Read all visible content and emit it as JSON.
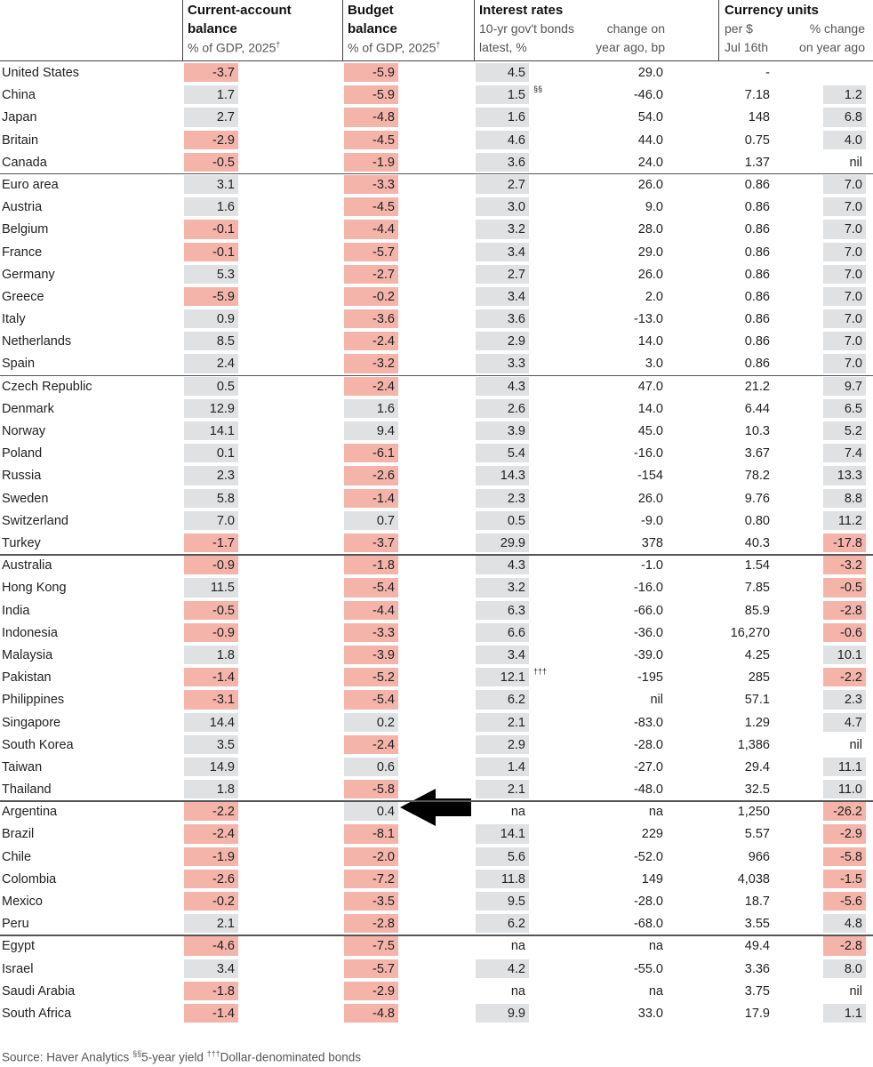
{
  "header": {
    "current_account": {
      "title": [
        "Current-account",
        "balance"
      ],
      "subtitle": "% of GDP, 2025",
      "footnote": "†"
    },
    "budget": {
      "title": [
        "Budget",
        "balance"
      ],
      "subtitle": "% of GDP, 2025",
      "footnote": "†"
    },
    "interest_rates": {
      "title": "Interest rates",
      "columns": [
        [
          "10-yr gov't bonds",
          "latest, %"
        ],
        [
          "change on",
          "year ago, bp"
        ]
      ]
    },
    "currency": {
      "title": "Currency units",
      "columns": [
        [
          "per $",
          "Jul 16th"
        ],
        [
          "% change",
          "on year ago"
        ]
      ]
    }
  },
  "table": {
    "groups": [
      {
        "rows": [
          {
            "country": "United States",
            "current_account": "-3.7",
            "budget": "-5.9",
            "bond_latest": "4.5",
            "bond_change": "29.0",
            "per_dollar": "-"
          },
          {
            "country": "China",
            "current_account": "1.7",
            "budget": "-5.9",
            "bond_latest": "1.5",
            "note": "§§",
            "bond_change": "-46.0",
            "per_dollar": "7.18",
            "currency_change": "1.2"
          },
          {
            "country": "Japan",
            "current_account": "2.7",
            "budget": "-4.8",
            "bond_latest": "1.6",
            "bond_change": "54.0",
            "per_dollar": "148",
            "currency_change": "6.8"
          },
          {
            "country": "Britain",
            "current_account": "-2.9",
            "budget": "-4.5",
            "bond_latest": "4.6",
            "bond_change": "44.0",
            "per_dollar": "0.75",
            "currency_change": "4.0"
          },
          {
            "country": "Canada",
            "current_account": "-0.5",
            "budget": "-1.9",
            "bond_latest": "3.6",
            "bond_change": "24.0",
            "per_dollar": "1.37",
            "currency_change": "nil"
          }
        ]
      },
      {
        "rows": [
          {
            "country": "Euro area",
            "current_account": "3.1",
            "budget": "-3.3",
            "bond_latest": "2.7",
            "bond_change": "26.0",
            "per_dollar": "0.86",
            "currency_change": "7.0"
          },
          {
            "country": "Austria",
            "current_account": "1.6",
            "budget": "-4.5",
            "bond_latest": "3.0",
            "bond_change": "9.0",
            "per_dollar": "0.86",
            "currency_change": "7.0"
          },
          {
            "country": "Belgium",
            "current_account": "-0.1",
            "budget": "-4.4",
            "bond_latest": "3.2",
            "bond_change": "28.0",
            "per_dollar": "0.86",
            "currency_change": "7.0"
          },
          {
            "country": "France",
            "current_account": "-0.1",
            "budget": "-5.7",
            "bond_latest": "3.4",
            "bond_change": "29.0",
            "per_dollar": "0.86",
            "currency_change": "7.0"
          },
          {
            "country": "Germany",
            "current_account": "5.3",
            "budget": "-2.7",
            "bond_latest": "2.7",
            "bond_change": "26.0",
            "per_dollar": "0.86",
            "currency_change": "7.0"
          },
          {
            "country": "Greece",
            "current_account": "-5.9",
            "budget": "-0.2",
            "bond_latest": "3.4",
            "bond_change": "2.0",
            "per_dollar": "0.86",
            "currency_change": "7.0"
          },
          {
            "country": "Italy",
            "current_account": "0.9",
            "budget": "-3.6",
            "bond_latest": "3.6",
            "bond_change": "-13.0",
            "per_dollar": "0.86",
            "currency_change": "7.0"
          },
          {
            "country": "Netherlands",
            "current_account": "8.5",
            "budget": "-2.4",
            "bond_latest": "2.9",
            "bond_change": "14.0",
            "per_dollar": "0.86",
            "currency_change": "7.0"
          },
          {
            "country": "Spain",
            "current_account": "2.4",
            "budget": "-3.2",
            "bond_latest": "3.3",
            "bond_change": "3.0",
            "per_dollar": "0.86",
            "currency_change": "7.0"
          }
        ]
      },
      {
        "rows": [
          {
            "country": "Czech Republic",
            "current_account": "0.5",
            "budget": "-2.4",
            "bond_latest": "4.3",
            "bond_change": "47.0",
            "per_dollar": "21.2",
            "currency_change": "9.7"
          },
          {
            "country": "Denmark",
            "current_account": "12.9",
            "budget": "1.6",
            "bond_latest": "2.6",
            "bond_change": "14.0",
            "per_dollar": "6.44",
            "currency_change": "6.5"
          },
          {
            "country": "Norway",
            "current_account": "14.1",
            "budget": "9.4",
            "bond_latest": "3.9",
            "bond_change": "45.0",
            "per_dollar": "10.3",
            "currency_change": "5.2"
          },
          {
            "country": "Poland",
            "current_account": "0.1",
            "budget": "-6.1",
            "bond_latest": "5.4",
            "bond_change": "-16.0",
            "per_dollar": "3.67",
            "currency_change": "7.4"
          },
          {
            "country": "Russia",
            "current_account": "2.3",
            "budget": "-2.6",
            "bond_latest": "14.3",
            "bond_change": "-154",
            "per_dollar": "78.2",
            "currency_change": "13.3"
          },
          {
            "country": "Sweden",
            "current_account": "5.8",
            "budget": "-1.4",
            "bond_latest": "2.3",
            "bond_change": "26.0",
            "per_dollar": "9.76",
            "currency_change": "8.8"
          },
          {
            "country": "Switzerland",
            "current_account": "7.0",
            "budget": "0.7",
            "bond_latest": "0.5",
            "bond_change": "-9.0",
            "per_dollar": "0.80",
            "currency_change": "11.2"
          },
          {
            "country": "Turkey",
            "current_account": "-1.7",
            "budget": "-3.7",
            "bond_latest": "29.9",
            "bond_change": "378",
            "per_dollar": "40.3",
            "currency_change": "-17.8"
          }
        ]
      },
      {
        "rows": [
          {
            "country": "Australia",
            "current_account": "-0.9",
            "budget": "-1.8",
            "bond_latest": "4.3",
            "bond_change": "-1.0",
            "per_dollar": "1.54",
            "currency_change": "-3.2"
          },
          {
            "country": "Hong Kong",
            "current_account": "11.5",
            "budget": "-5.4",
            "bond_latest": "3.2",
            "bond_change": "-16.0",
            "per_dollar": "7.85",
            "currency_change": "-0.5"
          },
          {
            "country": "India",
            "current_account": "-0.5",
            "budget": "-4.4",
            "bond_latest": "6.3",
            "bond_change": "-66.0",
            "per_dollar": "85.9",
            "currency_change": "-2.8"
          },
          {
            "country": "Indonesia",
            "current_account": "-0.9",
            "budget": "-3.3",
            "bond_latest": "6.6",
            "bond_change": "-36.0",
            "per_dollar": "16,270",
            "currency_change": "-0.6"
          },
          {
            "country": "Malaysia",
            "current_account": "1.8",
            "budget": "-3.9",
            "bond_latest": "3.4",
            "bond_change": "-39.0",
            "per_dollar": "4.25",
            "currency_change": "10.1"
          },
          {
            "country": "Pakistan",
            "current_account": "-1.4",
            "budget": "-5.2",
            "bond_latest": "12.1",
            "note": "†††",
            "bond_change": "-195",
            "per_dollar": "285",
            "currency_change": "-2.2"
          },
          {
            "country": "Philippines",
            "current_account": "-3.1",
            "budget": "-5.4",
            "bond_latest": "6.2",
            "bond_change": "nil",
            "per_dollar": "57.1",
            "currency_change": "2.3"
          },
          {
            "country": "Singapore",
            "current_account": "14.4",
            "budget": "0.2",
            "bond_latest": "2.1",
            "bond_change": "-83.0",
            "per_dollar": "1.29",
            "currency_change": "4.7"
          },
          {
            "country": "South Korea",
            "current_account": "3.5",
            "budget": "-2.4",
            "bond_latest": "2.9",
            "bond_change": "-28.0",
            "per_dollar": "1,386",
            "currency_change": "nil"
          },
          {
            "country": "Taiwan",
            "current_account": "14.9",
            "budget": "0.6",
            "bond_latest": "1.4",
            "bond_change": "-27.0",
            "per_dollar": "29.4",
            "currency_change": "11.1"
          },
          {
            "country": "Thailand",
            "current_account": "1.8",
            "budget": "-5.8",
            "bond_latest": "2.1",
            "bond_change": "-48.0",
            "per_dollar": "32.5",
            "currency_change": "11.0"
          }
        ]
      },
      {
        "rows": [
          {
            "country": "Argentina",
            "current_account": "-2.2",
            "budget": "0.4",
            "bond_latest": "na",
            "bond_change": "na",
            "per_dollar": "1,250",
            "currency_change": "-26.2"
          },
          {
            "country": "Brazil",
            "current_account": "-2.4",
            "budget": "-8.1",
            "bond_latest": "14.1",
            "bond_change": "229",
            "per_dollar": "5.57",
            "currency_change": "-2.9"
          },
          {
            "country": "Chile",
            "current_account": "-1.9",
            "budget": "-2.0",
            "bond_latest": "5.6",
            "bond_change": "-52.0",
            "per_dollar": "966",
            "currency_change": "-5.8"
          },
          {
            "country": "Colombia",
            "current_account": "-2.6",
            "budget": "-7.2",
            "bond_latest": "11.8",
            "bond_change": "149",
            "per_dollar": "4,038",
            "currency_change": "-1.5"
          },
          {
            "country": "Mexico",
            "current_account": "-0.2",
            "budget": "-3.5",
            "bond_latest": "9.5",
            "bond_change": "-28.0",
            "per_dollar": "18.7",
            "currency_change": "-5.6"
          },
          {
            "country": "Peru",
            "current_account": "2.1",
            "budget": "-2.8",
            "bond_latest": "6.2",
            "bond_change": "-68.0",
            "per_dollar": "3.55",
            "currency_change": "4.8"
          }
        ]
      },
      {
        "rows": [
          {
            "country": "Egypt",
            "current_account": "-4.6",
            "budget": "-7.5",
            "bond_latest": "na",
            "bond_change": "na",
            "per_dollar": "49.4",
            "currency_change": "-2.8"
          },
          {
            "country": "Israel",
            "current_account": "3.4",
            "budget": "-5.7",
            "bond_latest": "4.2",
            "bond_change": "-55.0",
            "per_dollar": "3.36",
            "currency_change": "8.0"
          },
          {
            "country": "Saudi Arabia",
            "current_account": "-1.8",
            "budget": "-2.9",
            "bond_latest": "na",
            "bond_change": "na",
            "per_dollar": "3.75",
            "currency_change": "nil"
          },
          {
            "country": "South Africa",
            "current_account": "-1.4",
            "budget": "-4.8",
            "bond_latest": "9.9",
            "bond_change": "33.0",
            "per_dollar": "17.9",
            "currency_change": "1.1"
          }
        ]
      }
    ]
  },
  "source": {
    "label": "Source: Haver Analytics",
    "notes": [
      {
        "mark": "§§",
        "text": "5-year yield"
      },
      {
        "mark": "†††",
        "text": "Dollar-denominated bonds"
      }
    ]
  }
}
